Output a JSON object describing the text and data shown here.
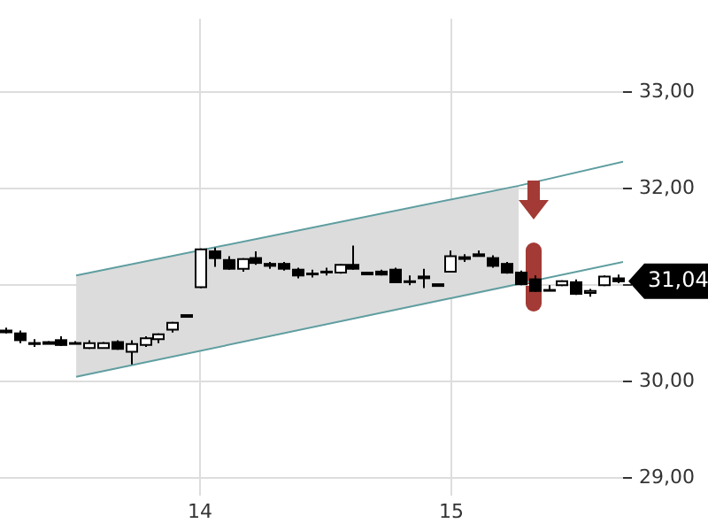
{
  "chart_data": {
    "type": "candlestick",
    "x": [
      13.225,
      13.28,
      13.336,
      13.391,
      13.446,
      13.502,
      13.557,
      13.612,
      13.668,
      13.723,
      13.779,
      13.834,
      13.889,
      13.945,
      14.0,
      14.055,
      14.111,
      14.166,
      14.221,
      14.277,
      14.332,
      14.387,
      14.443,
      14.498,
      14.553,
      14.609,
      14.664,
      14.719,
      14.775,
      14.83,
      14.886,
      14.941,
      14.996,
      15.052,
      15.107,
      15.162,
      15.218,
      15.273,
      15.328,
      15.384,
      15.439,
      15.494,
      15.55,
      15.605,
      15.66
    ],
    "ohlc": [
      [
        30.53,
        30.56,
        30.5,
        30.53
      ],
      [
        30.51,
        30.53,
        30.4,
        30.43
      ],
      [
        30.41,
        30.44,
        30.36,
        30.39
      ],
      [
        30.41,
        30.42,
        30.4,
        30.41
      ],
      [
        30.44,
        30.47,
        30.37,
        30.38
      ],
      [
        30.41,
        30.42,
        30.39,
        30.4
      ],
      [
        30.35,
        30.43,
        30.34,
        30.4
      ],
      [
        30.35,
        30.41,
        30.35,
        30.4
      ],
      [
        30.42,
        30.43,
        30.33,
        30.34
      ],
      [
        30.31,
        30.43,
        30.18,
        30.39
      ],
      [
        30.38,
        30.47,
        30.36,
        30.45
      ],
      [
        30.44,
        30.5,
        30.4,
        30.49
      ],
      [
        30.54,
        30.62,
        30.51,
        30.61
      ],
      [
        30.69,
        30.69,
        30.69,
        30.69
      ],
      [
        30.98,
        31.38,
        30.97,
        31.37
      ],
      [
        31.36,
        31.39,
        31.19,
        31.28
      ],
      [
        31.27,
        31.3,
        31.16,
        31.17
      ],
      [
        31.17,
        31.28,
        31.14,
        31.27
      ],
      [
        31.29,
        31.35,
        31.21,
        31.23
      ],
      [
        31.23,
        31.24,
        31.17,
        31.2
      ],
      [
        31.23,
        31.24,
        31.15,
        31.17
      ],
      [
        31.17,
        31.18,
        31.07,
        31.1
      ],
      [
        31.13,
        31.16,
        31.08,
        31.12
      ],
      [
        31.15,
        31.18,
        31.1,
        31.14
      ],
      [
        31.13,
        31.22,
        31.12,
        31.21
      ],
      [
        31.22,
        31.41,
        31.16,
        31.17
      ],
      [
        31.13,
        31.14,
        31.12,
        31.13
      ],
      [
        31.15,
        31.16,
        31.1,
        31.11
      ],
      [
        31.17,
        31.18,
        31.02,
        31.03
      ],
      [
        31.05,
        31.1,
        31.0,
        31.04
      ],
      [
        31.08,
        31.17,
        30.97,
        31.09
      ],
      [
        31.01,
        31.01,
        31.01,
        31.01
      ],
      [
        31.14,
        31.36,
        31.13,
        31.3
      ],
      [
        31.28,
        31.32,
        31.24,
        31.29
      ],
      [
        31.32,
        31.36,
        31.31,
        31.32
      ],
      [
        31.29,
        31.31,
        31.18,
        31.2
      ],
      [
        31.23,
        31.24,
        31.12,
        31.13
      ],
      [
        31.14,
        31.15,
        31.0,
        31.01
      ],
      [
        31.07,
        31.1,
        30.93,
        30.94
      ],
      [
        30.96,
        31.0,
        30.94,
        30.95
      ],
      [
        31.0,
        31.05,
        30.99,
        31.04
      ],
      [
        31.04,
        31.06,
        30.9,
        30.91
      ],
      [
        30.92,
        30.96,
        30.88,
        30.94
      ],
      [
        31.0,
        31.1,
        30.99,
        31.09
      ],
      [
        31.08,
        31.11,
        31.02,
        31.04
      ]
    ],
    "series": [
      {
        "type": "line",
        "x": [
          13.507,
          15.268,
          15.683
        ],
        "values": [
          31.1,
          32.03,
          32.28
        ],
        "lower": [
          30.05,
          31.0,
          null
        ],
        "upper": [
          31.1,
          32.03,
          null
        ],
        "color": "#5f9ea0"
      },
      {
        "type": "line",
        "x": [
          13.507,
          15.683
        ],
        "values": [
          30.05,
          31.24
        ],
        "color": "#5f9ea0"
      }
    ],
    "xlim": [
      13.204,
      15.683
    ],
    "ylim": [
      28.82,
      33.76
    ],
    "xticks": [
      14,
      15
    ],
    "yticks": [
      {
        "value": 29,
        "label": "29,00"
      },
      {
        "value": 30,
        "label": "30,00"
      },
      {
        "value": 31,
        "label": null
      },
      {
        "value": 32,
        "label": "32,00"
      },
      {
        "value": 33,
        "label": "33,00"
      }
    ],
    "grid": true,
    "legend": false,
    "annotations": [
      {
        "text": "31,04",
        "x": 15.66,
        "y": 31.04
      }
    ]
  }
}
